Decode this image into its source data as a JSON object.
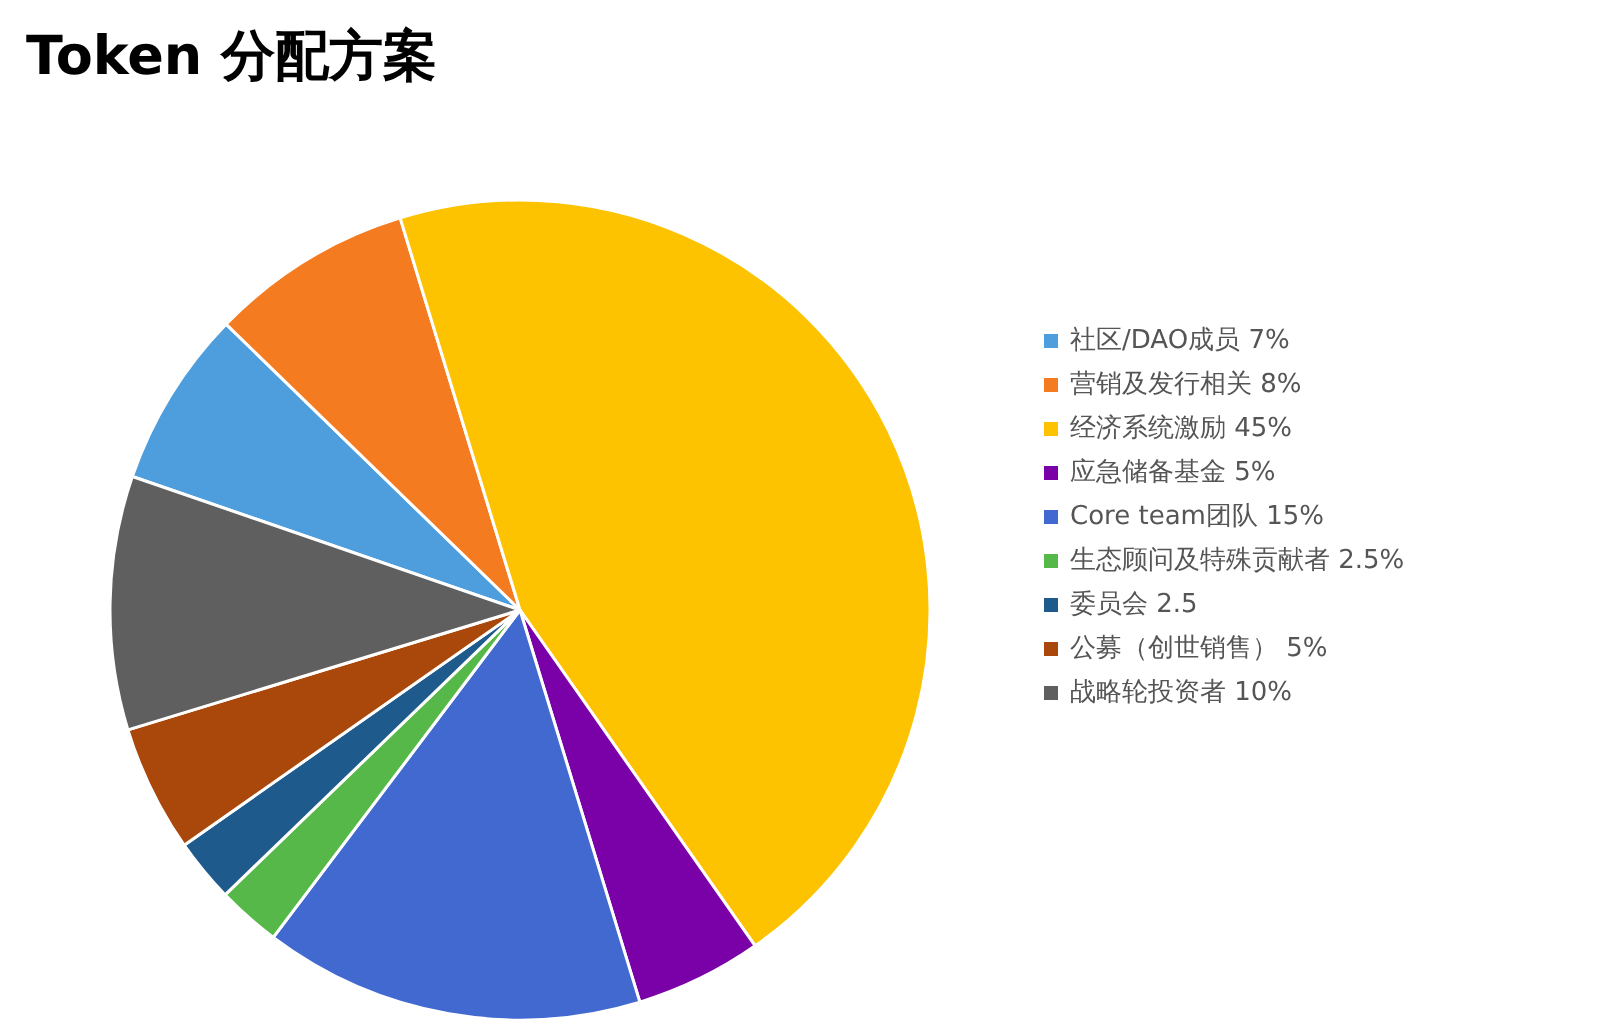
{
  "chart_data": {
    "type": "pie",
    "title": "Token 分配方案",
    "categories": [
      "社区/DAO成员 7%",
      "营销及发行相关 8%",
      "经济系统激励 45%",
      "应急储备基金 5%",
      "Core team团队 15%",
      "生态顾问及特殊贡献者 2.5%",
      "委员会 2.5",
      "公募（创世销售） 5%",
      "战略轮投资者 10%"
    ],
    "values": [
      7,
      8,
      45,
      5,
      15,
      2.5,
      2.5,
      5,
      10
    ],
    "colors": [
      "#4e9ddc",
      "#f47b20",
      "#fdc200",
      "#7a00a8",
      "#4169cf",
      "#56b848",
      "#1f5a8c",
      "#a9480a",
      "#5f5f5f"
    ],
    "legend": "right"
  }
}
